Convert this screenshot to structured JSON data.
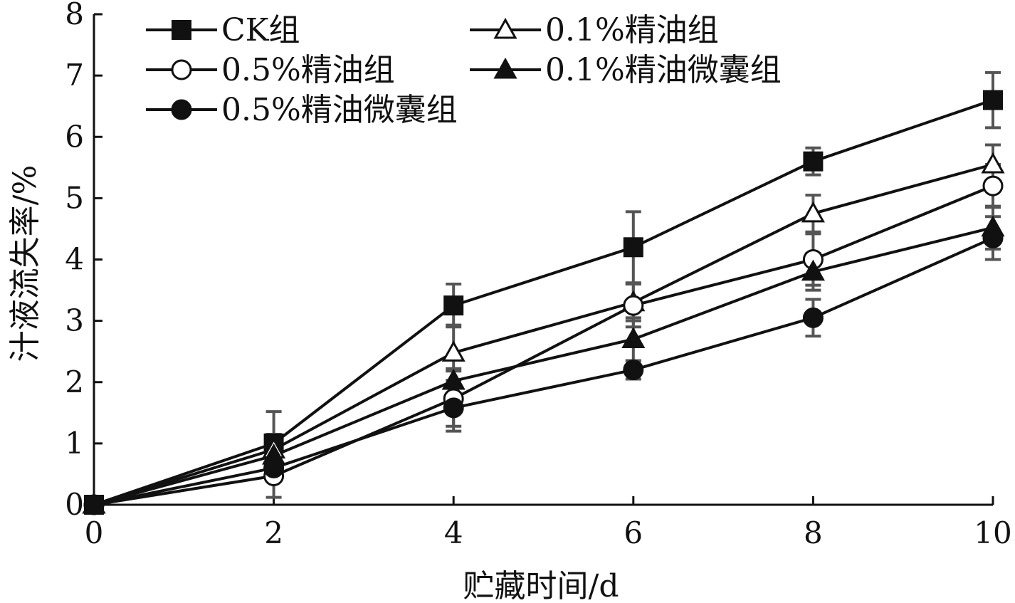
{
  "chart_data": {
    "type": "line",
    "title": "",
    "xlabel": "贮藏时间/d",
    "ylabel": "汁液流失率/%",
    "xlim": [
      0,
      10
    ],
    "ylim": [
      0,
      8
    ],
    "x_ticks": [
      0,
      2,
      4,
      6,
      8,
      10
    ],
    "y_ticks": [
      0,
      1,
      2,
      3,
      4,
      5,
      6,
      7,
      8
    ],
    "x_tick_labels": [
      "0",
      "2",
      "4",
      "6",
      "8",
      "10"
    ],
    "y_tick_labels": [
      "0",
      "1",
      "2",
      "3",
      "4",
      "5",
      "6",
      "7",
      "8"
    ],
    "grid": false,
    "legend_position": "top-left",
    "x": [
      0,
      2,
      4,
      6,
      8,
      10
    ],
    "series": [
      {
        "name": "CK组",
        "marker": "square-filled",
        "values": [
          0,
          1.0,
          3.25,
          4.2,
          5.6,
          6.6
        ],
        "errors": [
          0,
          0.52,
          0.35,
          0.58,
          0.22,
          0.45
        ]
      },
      {
        "name": "0.1%精油组",
        "marker": "triangle-open",
        "values": [
          0,
          0.9,
          2.48,
          3.3,
          4.75,
          5.55
        ],
        "errors": [
          0,
          0.25,
          0.45,
          0.3,
          0.3,
          0.32
        ]
      },
      {
        "name": "0.5%精油组",
        "marker": "circle-open",
        "values": [
          0,
          0.47,
          1.73,
          3.25,
          4.0,
          5.2
        ],
        "errors": [
          0,
          0.35,
          0.45,
          0.35,
          0.42,
          0.35
        ]
      },
      {
        "name": "0.1%精油微囊组",
        "marker": "triangle-filled",
        "values": [
          0,
          0.8,
          2.02,
          2.7,
          3.8,
          4.52
        ],
        "errors": [
          0,
          0.2,
          0.2,
          0.35,
          0.3,
          0.35
        ]
      },
      {
        "name": "0.5%精油微囊组",
        "marker": "circle-filled",
        "values": [
          0,
          0.6,
          1.58,
          2.2,
          3.05,
          4.35
        ],
        "errors": [
          0,
          0.2,
          0.38,
          0.15,
          0.3,
          0.35
        ]
      }
    ],
    "colors": {
      "line": "#111111",
      "errorbar": "#555555",
      "axis": "#111111"
    }
  }
}
